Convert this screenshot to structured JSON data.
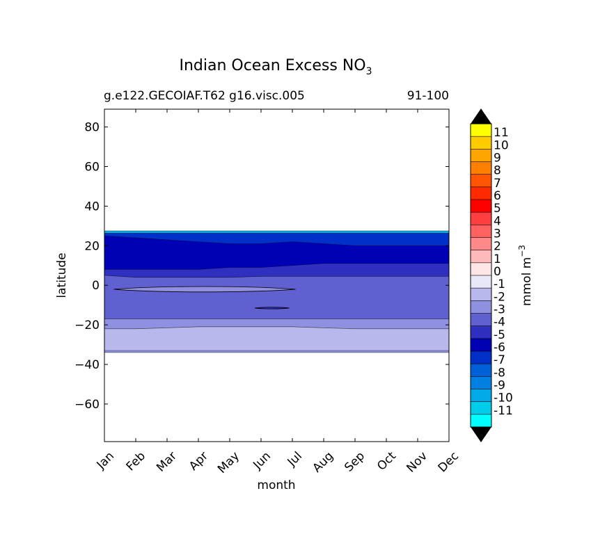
{
  "chart_data": {
    "type": "contour",
    "title": "Indian Ocean Excess NO",
    "title_subscript": "3",
    "subtitle_left": "g.e122.GECOIAF.T62 g16.visc.005",
    "subtitle_right": "91-100",
    "xlabel": "month",
    "ylabel": "latitude",
    "x_ticks": [
      "Jan",
      "Feb",
      "Mar",
      "Apr",
      "May",
      "Jun",
      "Jul",
      "Aug",
      "Sep",
      "Oct",
      "Nov",
      "Dec"
    ],
    "xlim": [
      0,
      11
    ],
    "y_ticks": [
      80,
      60,
      40,
      20,
      0,
      -20,
      -40,
      -60
    ],
    "y_tick_labels": [
      "80",
      "60",
      "40",
      "20",
      "0",
      "−20",
      "−40",
      "−60"
    ],
    "ylim": [
      -79,
      89
    ],
    "colorbar": {
      "label": "mmol m",
      "label_superscript": "−3",
      "levels": [
        11,
        10,
        9,
        8,
        7,
        6,
        5,
        4,
        3,
        2,
        1,
        0,
        -1,
        -2,
        -3,
        -4,
        -5,
        -6,
        -7,
        -8,
        -9,
        -10,
        -11
      ],
      "level_labels": [
        "11",
        "10",
        "9",
        "8",
        "7",
        "6",
        "5",
        "4",
        "3",
        "2",
        "1",
        "0",
        "-1",
        "-2",
        "-3",
        "-4",
        "-5",
        "-6",
        "-7",
        "-8",
        "-9",
        "-10",
        "-11"
      ],
      "colors_top_to_bottom": [
        "#ffff00",
        "#ffcc00",
        "#ffa500",
        "#ff7f00",
        "#ff5500",
        "#ff2a00",
        "#ff0000",
        "#ff3f3f",
        "#ff6060",
        "#ff8888",
        "#ffbbbb",
        "#ffe6e6",
        "#e8e8f8",
        "#b8b8ec",
        "#9090e0",
        "#6060d0",
        "#3030c0",
        "#0000b4",
        "#0030c8",
        "#0060d8",
        "#0080e0",
        "#00aae6",
        "#00cdea",
        "#00ffff"
      ],
      "over_color": "#000000",
      "under_color": "#000000"
    },
    "bands": [
      {
        "level": -9,
        "color": "#00aae6",
        "lat_top": [
          27.5,
          27.5,
          27.5,
          27.5,
          27.5,
          27.5,
          27.5,
          27.5,
          27.5,
          27.5,
          27.5,
          27.5
        ],
        "lat_bottom": [
          26.3,
          26.3,
          26.3,
          26.3,
          26.3,
          26.3,
          26.3,
          26.3,
          26.3,
          26.3,
          26.3,
          26.3
        ]
      },
      {
        "level": -7,
        "color": "#0030c8",
        "lat_top": [
          26.3,
          26.3,
          26.3,
          26.3,
          26.3,
          26.3,
          26.3,
          26.3,
          26.3,
          26.3,
          26.3,
          26.3
        ],
        "lat_bottom": [
          5,
          4,
          4,
          4,
          4,
          4.5,
          4.5,
          4.5,
          4.5,
          4.5,
          4.5,
          4.5
        ]
      },
      {
        "level": -6,
        "color": "#0000b4",
        "lat_top": [
          25,
          24,
          23,
          22,
          21,
          21,
          22,
          21,
          20,
          20,
          20,
          20
        ],
        "lat_bottom": [
          7,
          7,
          7,
          7,
          8,
          8,
          9,
          10,
          10,
          10,
          10,
          10
        ]
      },
      {
        "level": -5,
        "color": "#3030c0",
        "lat_top": [
          8,
          8,
          8,
          8,
          9,
          9,
          10,
          11,
          11,
          11,
          11,
          11
        ],
        "lat_bottom": [
          5,
          4,
          4,
          4,
          4,
          4.5,
          4.5,
          4.5,
          4.5,
          4.5,
          4.5,
          4.5
        ]
      },
      {
        "level": -4,
        "color": "#6060d0",
        "lat_top": [
          5,
          4,
          4,
          4,
          4,
          4.5,
          4.5,
          4.5,
          4.5,
          4.5,
          4.5,
          4.5
        ],
        "lat_bottom": [
          -17,
          -17,
          -17,
          -17,
          -17,
          -17,
          -17,
          -17,
          -17,
          -17,
          -17,
          -17
        ]
      },
      {
        "level": -3,
        "color": "#9090e0",
        "lat_top": [
          -17,
          -17,
          -17,
          -17,
          -17,
          -17,
          -17,
          -17,
          -17,
          -17,
          -17,
          -17
        ],
        "lat_bottom": [
          -22,
          -22,
          -21.5,
          -21,
          -21,
          -21,
          -21,
          -21.5,
          -22,
          -22,
          -22,
          -22
        ]
      },
      {
        "level": -2,
        "color": "#b8b8ec",
        "lat_top": [
          -22,
          -22,
          -21.5,
          -21,
          -21,
          -21,
          -21,
          -21.5,
          -22,
          -22,
          -22,
          -22
        ],
        "lat_bottom": [
          -33,
          -33,
          -33,
          -33,
          -33,
          -33,
          -33,
          -33,
          -33,
          -33,
          -33,
          -33
        ]
      },
      {
        "level": -3,
        "color": "#9090e0",
        "lat_top": [
          -33,
          -33,
          -33,
          -33,
          -33,
          -33,
          -33,
          -33,
          -33,
          -33,
          -33,
          -33
        ],
        "lat_bottom": [
          -34,
          -34,
          -34,
          -34,
          -34,
          -34,
          -34,
          -34,
          -34,
          -34,
          -34,
          -34
        ]
      }
    ],
    "features": [
      {
        "level": -3,
        "color": "#9090e0",
        "x_start": 0.3,
        "x_end": 6.1,
        "lat_center": -2,
        "lat_half_height": 1.3
      },
      {
        "level": -5,
        "color": "#3030c0",
        "x_start": 4.8,
        "x_end": 5.9,
        "lat_center": -11.5,
        "lat_half_height": 0.4
      }
    ]
  }
}
